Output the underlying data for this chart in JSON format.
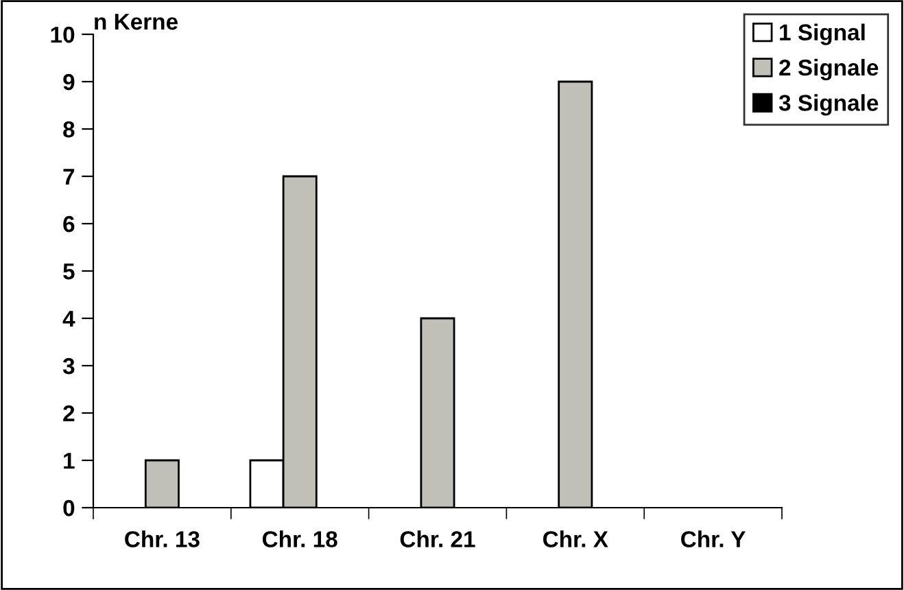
{
  "chart_data": {
    "type": "bar",
    "ylabel": "n Kerne",
    "categories": [
      "Chr. 13",
      "Chr. 18",
      "Chr. 21",
      "Chr. X",
      "Chr. Y"
    ],
    "series": [
      {
        "name": "1 Signal",
        "color": "#ffffff",
        "values": [
          null,
          1,
          null,
          null,
          null
        ]
      },
      {
        "name": "2 Signale",
        "color": "#c0c0b8",
        "values": [
          1,
          7,
          4,
          9,
          null
        ]
      },
      {
        "name": "3 Signale",
        "color": "#000000",
        "values": [
          null,
          null,
          null,
          null,
          null
        ]
      }
    ],
    "ylim": [
      0,
      10
    ],
    "yticks": [
      0,
      1,
      2,
      3,
      4,
      5,
      6,
      7,
      8,
      9,
      10
    ],
    "grid": false,
    "legend": "top right"
  }
}
